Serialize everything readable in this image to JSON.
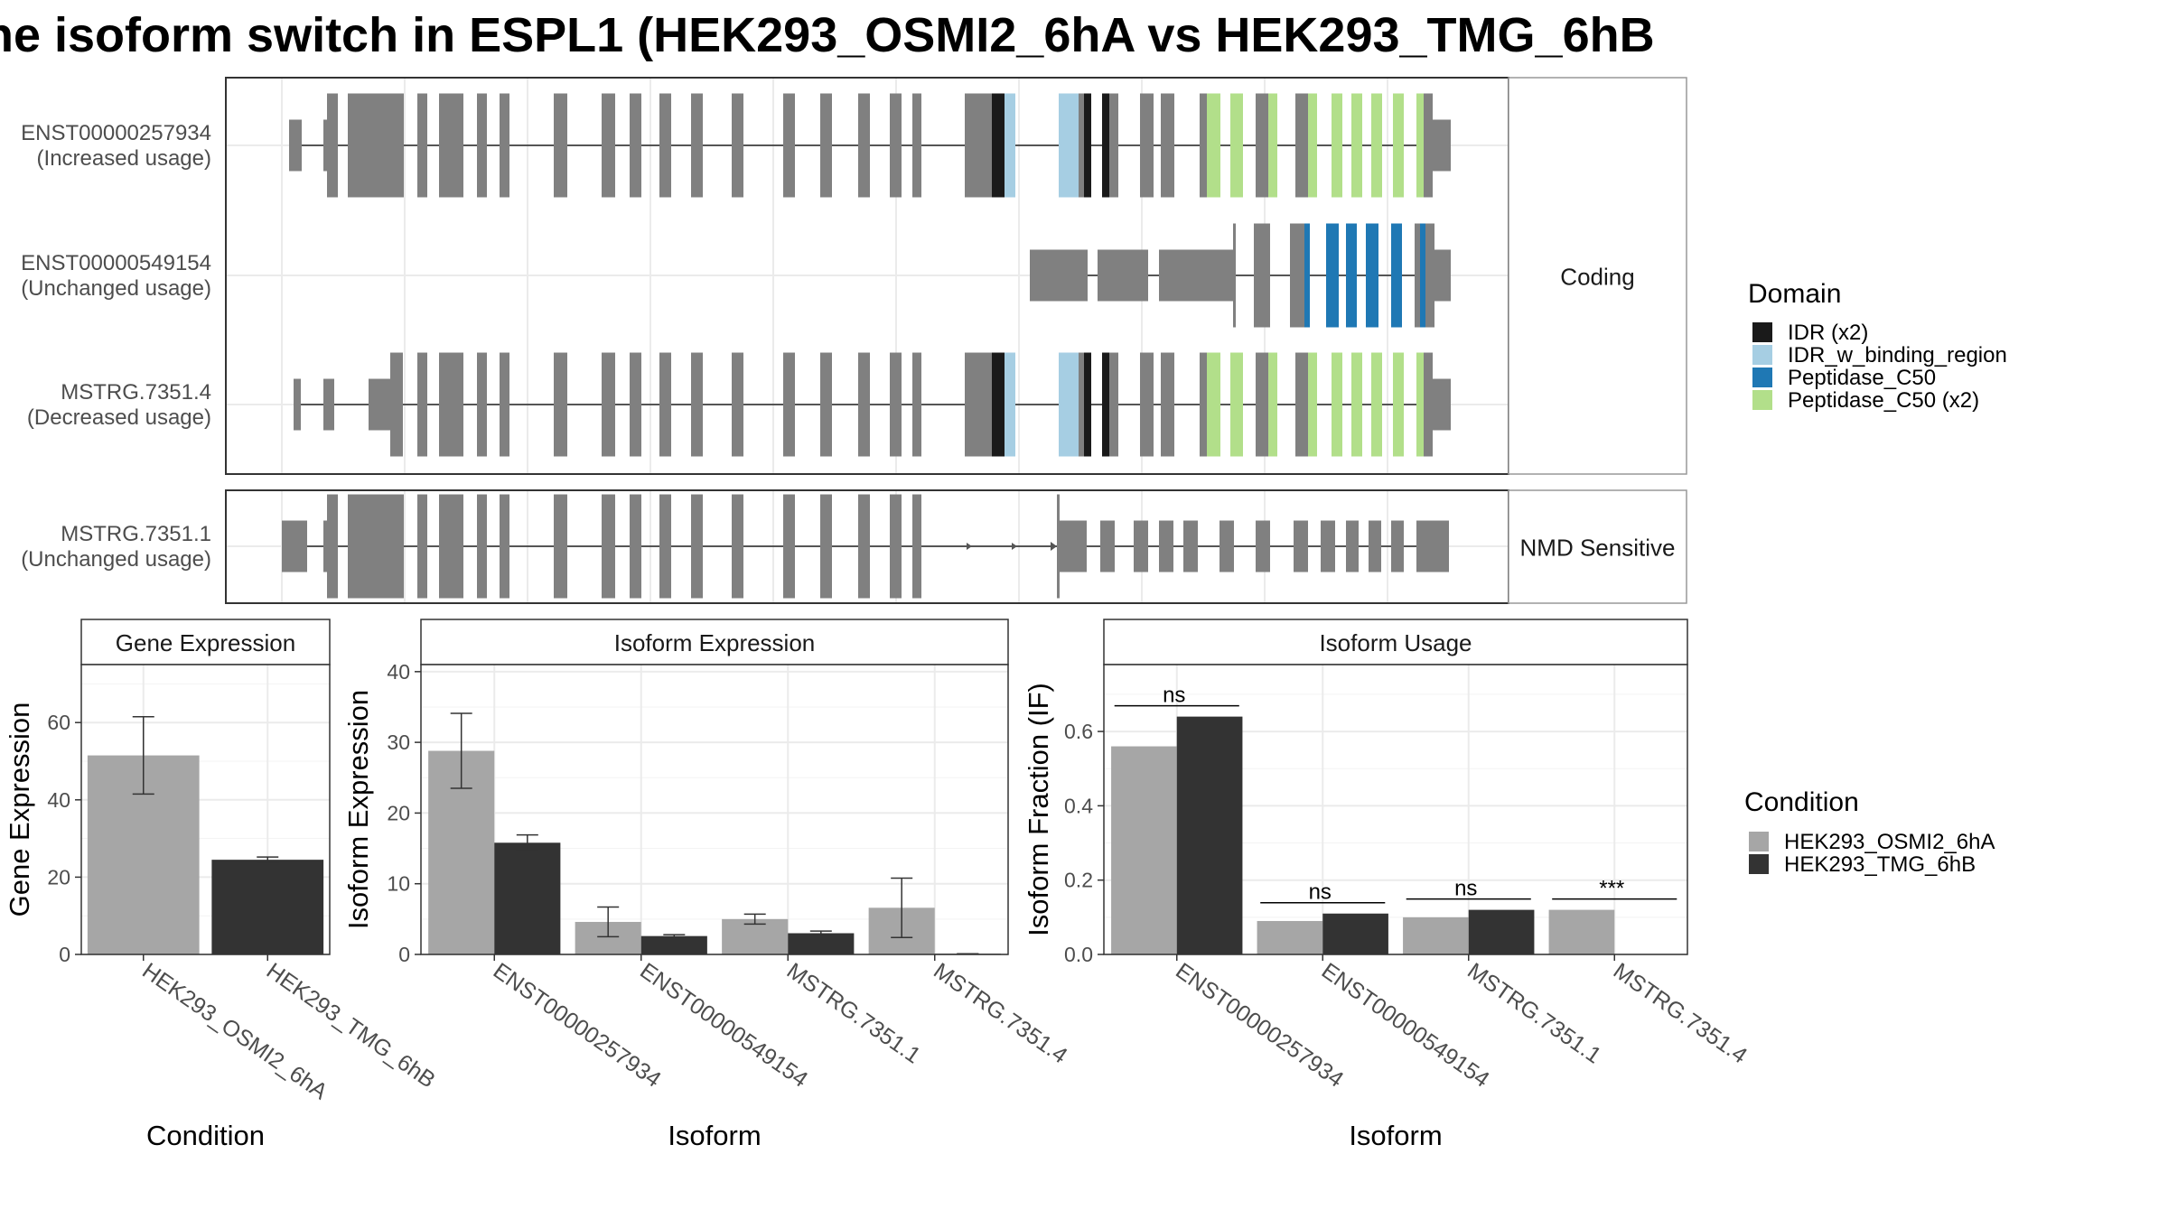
{
  "title": "he isoform switch in ESPL1 (HEK293_OSMI2_6hA vs HEK293_TMG_6hB",
  "colors": {
    "intron": "#555555",
    "exon": "#808080",
    "panel_border": "#333333",
    "strip_border": "#999999",
    "grid": "#ebebeb",
    "cond1": "#a6a6a6",
    "cond2": "#333333",
    "text": "#000000",
    "axis_text": "#4d4d4d"
  },
  "structure": {
    "facets": [
      {
        "label": "Coding",
        "transcripts": [
          {
            "id": "ENST00000257934",
            "note": "(Increased usage)",
            "layout": "full"
          },
          {
            "id": "ENST00000549154",
            "note": "(Unchanged usage)",
            "layout": "short"
          },
          {
            "id": "MSTRG.7351.4",
            "note": "(Decreased usage)",
            "layout": "full4"
          }
        ]
      },
      {
        "label": "NMD Sensitive",
        "transcripts": [
          {
            "id": "MSTRG.7351.1",
            "note": "(Unchanged usage)",
            "layout": "nmd"
          }
        ]
      }
    ]
  },
  "legends": {
    "domain": {
      "title": "Domain",
      "items": [
        {
          "label": "IDR (x2)",
          "color": "#1a1a1a"
        },
        {
          "label": "IDR_w_binding_region",
          "color": "#a6cee3"
        },
        {
          "label": "Peptidase_C50",
          "color": "#1f78b4"
        },
        {
          "label": "Peptidase_C50 (x2)",
          "color": "#b2df8a"
        }
      ]
    },
    "condition": {
      "title": "Condition",
      "items": [
        {
          "label": "HEK293_OSMI2_6hA",
          "color": "#a6a6a6"
        },
        {
          "label": "HEK293_TMG_6hB",
          "color": "#333333"
        }
      ]
    }
  },
  "chart_data": [
    {
      "type": "bar",
      "strip": "Gene Expression",
      "xlabel": "Condition",
      "ylabel": "Gene Expression",
      "ylim": [
        0,
        75
      ],
      "yticks": [
        0,
        20,
        40,
        60
      ],
      "yticklabels": [
        "0",
        "20",
        "40",
        "60"
      ],
      "categories": [
        "HEK293_OSMI2_6hA",
        "HEK293_TMG_6hB"
      ],
      "series": [
        {
          "name": "HEK293_OSMI2_6hA",
          "values": [
            51.5,
            null
          ],
          "err": [
            10.0,
            null
          ]
        },
        {
          "name": "HEK293_TMG_6hB",
          "values": [
            null,
            24.5
          ],
          "err": [
            null,
            0.7
          ]
        }
      ]
    },
    {
      "type": "bar",
      "strip": "Isoform Expression",
      "xlabel": "Isoform",
      "ylabel": "Isoform Expression",
      "ylim": [
        0,
        41
      ],
      "yticks": [
        0,
        10,
        20,
        30,
        40
      ],
      "yticklabels": [
        "0",
        "10",
        "20",
        "30",
        "40"
      ],
      "categories": [
        "ENST00000257934",
        "ENST00000549154",
        "MSTRG.7351.1",
        "MSTRG.7351.4"
      ],
      "series": [
        {
          "name": "HEK293_OSMI2_6hA",
          "values": [
            28.8,
            4.6,
            5.0,
            6.6
          ],
          "err": [
            5.3,
            2.1,
            0.7,
            4.2
          ]
        },
        {
          "name": "HEK293_TMG_6hB",
          "values": [
            15.8,
            2.6,
            3.0,
            0.1
          ],
          "err": [
            1.1,
            0.2,
            0.3,
            0.0
          ]
        }
      ]
    },
    {
      "type": "bar",
      "strip": "Isoform Usage",
      "xlabel": "Isoform",
      "ylabel": "Isoform Fraction (IF)",
      "ylim": [
        0,
        0.78
      ],
      "yticks": [
        0.0,
        0.2,
        0.4,
        0.6
      ],
      "yticklabels": [
        "0.0",
        "0.2",
        "0.4",
        "0.6"
      ],
      "categories": [
        "ENST00000257934",
        "ENST00000549154",
        "MSTRG.7351.1",
        "MSTRG.7351.4"
      ],
      "series": [
        {
          "name": "HEK293_OSMI2_6hA",
          "values": [
            0.56,
            0.09,
            0.1,
            0.12
          ]
        },
        {
          "name": "HEK293_TMG_6hB",
          "values": [
            0.64,
            0.11,
            0.12,
            0.0
          ]
        }
      ],
      "significance": [
        "ns",
        "ns",
        "ns",
        "***"
      ]
    }
  ]
}
